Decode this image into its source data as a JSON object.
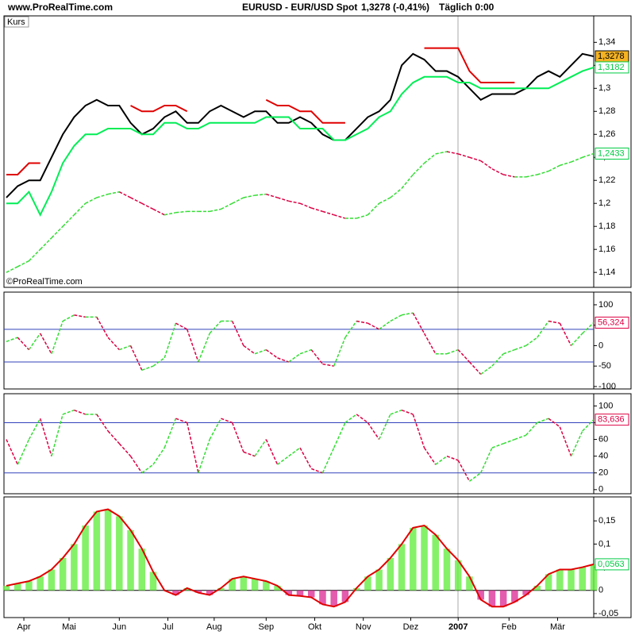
{
  "header": {
    "site": "www.ProRealTime.com",
    "instrument": "EURUSD - EUR/USD Spot",
    "quote": "1,3278 (-0,41%)",
    "interval": "Täglich 0:00"
  },
  "chart_data": [
    {
      "type": "line",
      "title": "Kurs",
      "watermark": "©ProRealTime.com",
      "x": [
        0,
        1,
        2,
        3,
        4,
        5,
        6,
        7,
        8,
        9,
        10,
        11,
        12,
        13,
        14,
        15,
        16,
        17,
        18,
        19,
        20,
        21,
        22,
        23,
        24,
        25,
        26,
        27,
        28,
        29,
        30,
        31,
        32,
        33,
        34,
        35,
        36,
        37,
        38,
        39,
        40,
        41,
        42,
        43,
        44,
        45,
        46,
        47,
        48,
        49,
        50,
        51,
        52
      ],
      "xlim": [
        0,
        52
      ],
      "ylim": [
        1.127,
        1.363
      ],
      "yticks": [
        {
          "value": 1.14,
          "label": "1,14"
        },
        {
          "value": 1.16,
          "label": "1,16"
        },
        {
          "value": 1.18,
          "label": "1,18"
        },
        {
          "value": 1.2,
          "label": "1,2"
        },
        {
          "value": 1.22,
          "label": "1,22"
        },
        {
          "value": 1.24,
          "label": "1,24"
        },
        {
          "value": 1.26,
          "label": "1,26"
        },
        {
          "value": 1.28,
          "label": "1,28"
        },
        {
          "value": 1.3,
          "label": "1,3"
        },
        {
          "value": 1.32,
          "label": "1,32"
        },
        {
          "value": 1.34,
          "label": "1,34"
        }
      ],
      "series": [
        {
          "color": "#000000",
          "values": [
            1.205,
            1.215,
            1.22,
            1.22,
            1.24,
            1.26,
            1.275,
            1.285,
            1.29,
            1.285,
            1.285,
            1.27,
            1.26,
            1.265,
            1.275,
            1.28,
            1.27,
            1.27,
            1.28,
            1.285,
            1.28,
            1.275,
            1.28,
            1.28,
            1.27,
            1.27,
            1.275,
            1.27,
            1.26,
            1.255,
            1.255,
            1.265,
            1.275,
            1.28,
            1.29,
            1.32,
            1.33,
            1.325,
            1.315,
            1.315,
            1.31,
            1.3,
            1.29,
            1.295,
            1.295,
            1.295,
            1.3,
            1.31,
            1.315,
            1.31,
            1.32,
            1.33,
            1.3278
          ],
          "last_label": "1,3278",
          "tag_fill": "#f5b324",
          "tag_color": "#000000"
        },
        {
          "color": "#e00000",
          "values": [
            1.225,
            1.225,
            1.235,
            1.235,
            null,
            null,
            null,
            null,
            null,
            null,
            null,
            1.285,
            1.28,
            1.28,
            1.285,
            1.285,
            1.28,
            null,
            null,
            null,
            null,
            null,
            null,
            1.29,
            1.285,
            1.285,
            1.28,
            1.28,
            1.27,
            1.27,
            1.27,
            null,
            null,
            null,
            null,
            null,
            null,
            1.335,
            1.335,
            1.335,
            1.335,
            1.315,
            1.305,
            1.305,
            1.305,
            1.305,
            null,
            null,
            null,
            null,
            null,
            null,
            null
          ]
        },
        {
          "color": "#00ee55",
          "values": [
            1.2,
            1.2,
            1.21,
            1.19,
            1.21,
            1.235,
            1.25,
            1.26,
            1.26,
            1.265,
            1.265,
            1.265,
            1.26,
            1.26,
            1.27,
            1.27,
            1.265,
            1.265,
            1.27,
            1.27,
            1.27,
            1.27,
            1.27,
            1.275,
            1.275,
            1.275,
            1.265,
            1.265,
            1.265,
            1.255,
            1.255,
            1.26,
            1.265,
            1.275,
            1.28,
            1.295,
            1.305,
            1.31,
            1.31,
            1.31,
            1.305,
            1.305,
            1.3,
            1.3,
            1.3,
            1.3,
            1.3,
            1.3,
            1.3,
            1.305,
            1.31,
            1.315,
            1.3182
          ],
          "last_label": "1,3182",
          "tag_fill": "#ffffff",
          "tag_color": "#00cc44"
        },
        {
          "color": "#33dd33",
          "color_down": "#dd0044",
          "dash": true,
          "values": [
            1.14,
            1.145,
            1.15,
            1.16,
            1.17,
            1.18,
            1.19,
            1.2,
            1.205,
            1.208,
            1.21,
            1.205,
            1.2,
            1.195,
            1.19,
            1.192,
            1.193,
            1.193,
            1.193,
            1.195,
            1.2,
            1.205,
            1.207,
            1.208,
            1.205,
            1.202,
            1.2,
            1.196,
            1.193,
            1.19,
            1.187,
            1.187,
            1.19,
            1.2,
            1.205,
            1.213,
            1.225,
            1.235,
            1.243,
            1.245,
            1.243,
            1.24,
            1.237,
            1.23,
            1.225,
            1.223,
            1.223,
            1.225,
            1.228,
            1.233,
            1.236,
            1.24,
            1.2433
          ],
          "last_label": "1,2433",
          "tag_fill": "#ffffff",
          "tag_color": "#00cc44"
        }
      ]
    },
    {
      "type": "line",
      "x": [
        0,
        1,
        2,
        3,
        4,
        5,
        6,
        7,
        8,
        9,
        10,
        11,
        12,
        13,
        14,
        15,
        16,
        17,
        18,
        19,
        20,
        21,
        22,
        23,
        24,
        25,
        26,
        27,
        28,
        29,
        30,
        31,
        32,
        33,
        34,
        35,
        36,
        37,
        38,
        39,
        40,
        41,
        42,
        43,
        44,
        45,
        46,
        47,
        48,
        49,
        50,
        51,
        52
      ],
      "xlim": [
        0,
        52
      ],
      "ylim": [
        -106,
        131
      ],
      "yticks": [
        100,
        50,
        0,
        -50,
        -100
      ],
      "levels": [
        40,
        -40
      ],
      "level_color": "#3344bb",
      "series": [
        {
          "color": "#33dd33",
          "color_down": "#dd0044",
          "dash": true,
          "values": [
            10,
            20,
            -10,
            30,
            -20,
            60,
            75,
            70,
            70,
            20,
            -10,
            0,
            -60,
            -50,
            -30,
            55,
            40,
            -40,
            30,
            60,
            60,
            0,
            -20,
            -10,
            -30,
            -40,
            -20,
            -10,
            -45,
            -50,
            20,
            60,
            55,
            40,
            60,
            75,
            80,
            30,
            -20,
            -20,
            -10,
            -40,
            -70,
            -50,
            -20,
            -10,
            0,
            20,
            60,
            55,
            0,
            30,
            56.324
          ],
          "last_label": "56,324",
          "tag_fill": "#ffffff",
          "tag_color": "#dd0044"
        }
      ]
    },
    {
      "type": "line",
      "x": [
        0,
        1,
        2,
        3,
        4,
        5,
        6,
        7,
        8,
        9,
        10,
        11,
        12,
        13,
        14,
        15,
        16,
        17,
        18,
        19,
        20,
        21,
        22,
        23,
        24,
        25,
        26,
        27,
        28,
        29,
        30,
        31,
        32,
        33,
        34,
        35,
        36,
        37,
        38,
        39,
        40,
        41,
        42,
        43,
        44,
        45,
        46,
        47,
        48,
        49,
        50,
        51,
        52
      ],
      "xlim": [
        0,
        52
      ],
      "ylim": [
        -4.9,
        114.6
      ],
      "yticks": [
        0,
        20,
        40,
        60,
        80,
        100
      ],
      "levels": [
        80,
        20
      ],
      "level_color": "#3344bb",
      "series": [
        {
          "color": "#33dd33",
          "color_down": "#dd0044",
          "dash": true,
          "values": [
            60,
            30,
            60,
            85,
            40,
            90,
            95,
            90,
            90,
            70,
            55,
            40,
            20,
            30,
            50,
            85,
            80,
            20,
            60,
            85,
            80,
            45,
            40,
            60,
            30,
            40,
            50,
            25,
            20,
            50,
            80,
            90,
            80,
            60,
            90,
            95,
            90,
            50,
            30,
            40,
            35,
            10,
            20,
            50,
            55,
            60,
            65,
            80,
            85,
            75,
            40,
            70,
            83.636
          ],
          "last_label": "83,636",
          "tag_fill": "#ffffff",
          "tag_color": "#dd0044"
        }
      ]
    },
    {
      "type": "bar",
      "x": [
        0,
        1,
        2,
        3,
        4,
        5,
        6,
        7,
        8,
        9,
        10,
        11,
        12,
        13,
        14,
        15,
        16,
        17,
        18,
        19,
        20,
        21,
        22,
        23,
        24,
        25,
        26,
        27,
        28,
        29,
        30,
        31,
        32,
        33,
        34,
        35,
        36,
        37,
        38,
        39,
        40,
        41,
        42,
        43,
        44,
        45,
        46,
        47,
        48,
        49,
        50,
        51,
        52
      ],
      "xlim": [
        0,
        52
      ],
      "ylim": [
        -0.0586,
        0.2017
      ],
      "yticks": [
        {
          "value": 0.15,
          "label": "0,15"
        },
        {
          "value": 0.1,
          "label": "0,1"
        },
        {
          "value": 0.05,
          "label": "0,05"
        },
        {
          "value": 0,
          "label": "0"
        },
        {
          "value": -0.05,
          "label": "-0,05"
        }
      ],
      "xticks": [
        {
          "value": 1.55,
          "label": "Apr"
        },
        {
          "value": 5.55,
          "label": "Mai"
        },
        {
          "value": 10,
          "label": "Jun"
        },
        {
          "value": 14.3,
          "label": "Jul"
        },
        {
          "value": 18.4,
          "label": "Aug"
        },
        {
          "value": 23,
          "label": "Sep"
        },
        {
          "value": 27.3,
          "label": "Okt"
        },
        {
          "value": 31.6,
          "label": "Nov"
        },
        {
          "value": 35.8,
          "label": "Dez"
        },
        {
          "value": 40,
          "label": "2007"
        },
        {
          "value": 44.5,
          "label": "Feb"
        },
        {
          "value": 48.8,
          "label": "Mär"
        }
      ],
      "series": [
        {
          "color": "#66ee44",
          "color_down": "#dd3399",
          "line_color": "#e00000",
          "values": [
            0.01,
            0.015,
            0.02,
            0.03,
            0.045,
            0.07,
            0.1,
            0.14,
            0.17,
            0.175,
            0.16,
            0.13,
            0.09,
            0.04,
            0.0,
            -0.01,
            0.005,
            -0.005,
            -0.01,
            0.005,
            0.025,
            0.03,
            0.025,
            0.02,
            0.01,
            -0.01,
            -0.012,
            -0.015,
            -0.03,
            -0.035,
            -0.025,
            0.005,
            0.03,
            0.045,
            0.07,
            0.1,
            0.135,
            0.14,
            0.12,
            0.09,
            0.065,
            0.03,
            -0.02,
            -0.035,
            -0.035,
            -0.025,
            -0.01,
            0.01,
            0.035,
            0.045,
            0.045,
            0.05,
            0.0563
          ],
          "last_label": "0,0563",
          "tag_fill": "#ffffff",
          "tag_color": "#00cc44"
        }
      ]
    }
  ]
}
